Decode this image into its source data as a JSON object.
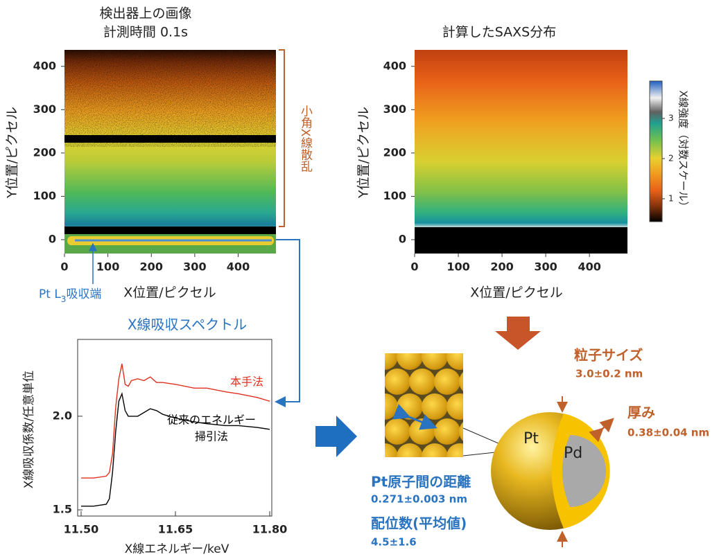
{
  "chart_data": [
    {
      "type": "heatmap",
      "title": "検出器上の画像",
      "subtitle": "計測時間 0.1s",
      "xlabel": "X位置/ピクセル",
      "ylabel": "Y位置/ピクセル",
      "xlim": [
        0,
        487
      ],
      "xticks": [
        0,
        100,
        200,
        300,
        400
      ],
      "ylim": [
        -32,
        438
      ],
      "yticks": [
        0,
        100,
        200,
        300,
        400
      ],
      "annotations": {
        "bracket": "小角X線散乱",
        "edge": {
          "before": "Pt L",
          "sub": "3",
          "after": "吸収端"
        }
      }
    },
    {
      "type": "heatmap",
      "title": "計算したSAXS分布",
      "xlabel": "X位置/ピクセル",
      "ylabel": "Y位置/ピクセル",
      "xlim": [
        0,
        487
      ],
      "xticks": [
        0,
        100,
        200,
        300,
        400
      ],
      "ylim": [
        -32,
        438
      ],
      "yticks": [
        0,
        100,
        200,
        300,
        400
      ],
      "colorbar": {
        "label": "X線強度（対数スケール）",
        "lim": [
          0.43,
          3.93
        ],
        "ticks": [
          1,
          2,
          3
        ]
      }
    },
    {
      "type": "line",
      "title": "X線吸収スペクトル",
      "xlabel": "X線エネルギー/keV",
      "ylabel": "X線吸収係数/任意単位",
      "x": [
        11.5,
        11.52,
        11.54,
        11.545,
        11.55,
        11.555,
        11.56,
        11.565,
        11.57,
        11.575,
        11.58,
        11.59,
        11.6,
        11.61,
        11.62,
        11.63,
        11.65,
        11.68,
        11.7,
        11.73,
        11.75,
        11.78,
        11.8
      ],
      "xlim": [
        11.4945,
        11.8033
      ],
      "xticks": [
        {
          "value": 11.5,
          "label": "11.50"
        },
        {
          "value": 11.65,
          "label": "11.65"
        },
        {
          "value": 11.8,
          "label": "11.80"
        }
      ],
      "ylim": [
        1.467,
        2.41
      ],
      "yticks": [
        1.5,
        {
          "value": 2,
          "label": "2.0"
        }
      ],
      "series": [
        {
          "name": "本手法",
          "color": "#e03020",
          "values": [
            1.67,
            1.67,
            1.68,
            1.7,
            1.8,
            2.05,
            2.2,
            2.28,
            2.17,
            2.16,
            2.19,
            2.2,
            2.19,
            2.21,
            2.18,
            2.18,
            2.17,
            2.15,
            2.15,
            2.13,
            2.12,
            2.1,
            2.08
          ]
        },
        {
          "name_lines": [
            "従来のエネルギー",
            "掃引法"
          ],
          "color": "#000000",
          "values": [
            1.52,
            1.52,
            1.53,
            1.56,
            1.7,
            1.92,
            2.08,
            2.12,
            2.03,
            2.0,
            2.0,
            2.0,
            2.02,
            2.04,
            2.03,
            2.01,
            1.99,
            1.97,
            1.96,
            1.95,
            1.95,
            1.94,
            1.93
          ]
        }
      ]
    }
  ],
  "diagram": {
    "particle_size": {
      "label": "粒子サイズ",
      "value": "3.0±0.2 nm"
    },
    "thickness": {
      "label": "厚み",
      "value": "0.38±0.04 nm"
    },
    "shell": "Pt",
    "core": "Pd",
    "distance": {
      "label": "Pt原子間の距離",
      "value": "0.271±0.003 nm"
    },
    "coordination": {
      "label": "配位数(平均値)",
      "value": "4.5±1.6"
    }
  }
}
